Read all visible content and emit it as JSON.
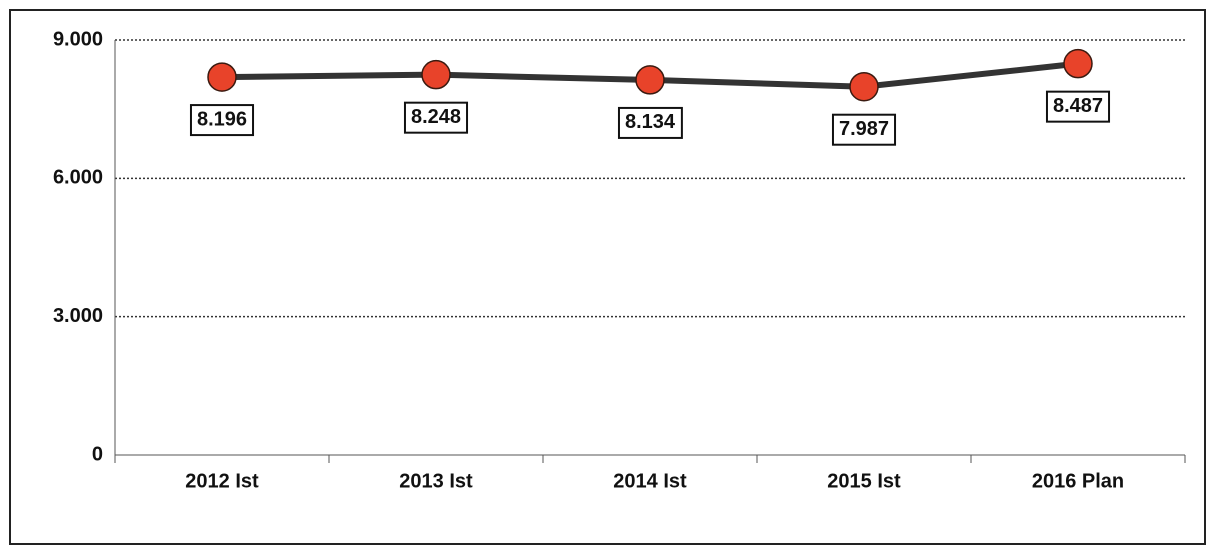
{
  "chart_data": {
    "type": "line",
    "categories": [
      "2012 Ist",
      "2013 Ist",
      "2014 Ist",
      "2015 Ist",
      "2016 Plan"
    ],
    "values": [
      8196,
      8248,
      8134,
      7987,
      8487
    ],
    "value_labels": [
      "8.196",
      "8.248",
      "8.134",
      "7.987",
      "8.487"
    ],
    "color": "#333333",
    "marker_color": "#e8432a",
    "ylim": [
      0,
      9000
    ],
    "yticks": [
      0,
      {
        "value": 3000,
        "label": "3.000"
      },
      {
        "value": 6000,
        "label": "6.000"
      },
      {
        "value": 9000,
        "label": "9.000"
      }
    ],
    "grid": true
  }
}
